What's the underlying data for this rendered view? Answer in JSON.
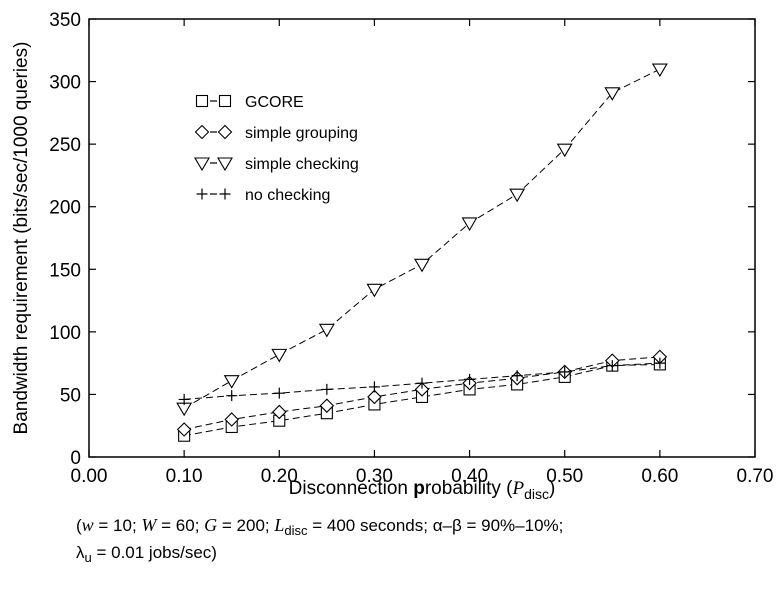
{
  "chart_data": {
    "type": "line",
    "xlabel": {
      "before": "Disconnection ",
      "bold": "p",
      "after": "robability (",
      "var": "P",
      "sub": "disc",
      "close": ")"
    },
    "ylabel": "Bandwidth requirement (bits/sec/1000 queries)",
    "xlim": [
      0.0,
      0.7
    ],
    "ylim": [
      0,
      350
    ],
    "x_ticks": [
      "0.00",
      "0.10",
      "0.20",
      "0.30",
      "0.40",
      "0.50",
      "0.60",
      "0.70"
    ],
    "y_ticks": [
      "0",
      "50",
      "100",
      "150",
      "200",
      "250",
      "300",
      "350"
    ],
    "grid": false,
    "legend_position": "upper-left",
    "x": [
      0.1,
      0.15,
      0.2,
      0.25,
      0.3,
      0.35,
      0.4,
      0.45,
      0.5,
      0.55,
      0.6
    ],
    "series": [
      {
        "name": "GCORE",
        "marker": "square",
        "values": [
          17,
          24,
          29,
          35,
          42,
          48,
          54,
          58,
          64,
          73,
          74
        ]
      },
      {
        "name": "simple grouping",
        "marker": "diamond",
        "values": [
          22,
          30,
          36,
          41,
          48,
          54,
          59,
          63,
          68,
          77,
          80
        ]
      },
      {
        "name": "simple checking",
        "marker": "triangle-down",
        "values": [
          39,
          61,
          82,
          102,
          134,
          154,
          187,
          210,
          246,
          291,
          310
        ]
      },
      {
        "name": "no checking",
        "marker": "plus",
        "values": [
          46,
          49,
          51,
          54,
          56,
          59,
          62,
          65,
          68,
          73,
          75
        ]
      }
    ],
    "legend_symbols": [
      "□–□",
      "◇–◇",
      "▽–▽",
      "+–+"
    ]
  },
  "caption": {
    "line1": [
      {
        "t": "(",
        "s": "n"
      },
      {
        "t": "w",
        "s": "i"
      },
      {
        "t": " = 10;  ",
        "s": "n"
      },
      {
        "t": "W",
        "s": "i"
      },
      {
        "t": " = 60;  ",
        "s": "n"
      },
      {
        "t": "G",
        "s": "i"
      },
      {
        "t": " = 200;  ",
        "s": "n"
      },
      {
        "t": "L",
        "s": "i"
      },
      {
        "t": "disc",
        "s": "sub"
      },
      {
        "t": " = 400 seconds;  α–β = 90%–10%;",
        "s": "n"
      }
    ],
    "line2": [
      {
        "t": "λ",
        "s": "n"
      },
      {
        "t": "u",
        "s": "sub"
      },
      {
        "t": " = 0.01 jobs/sec)",
        "s": "n"
      }
    ]
  }
}
